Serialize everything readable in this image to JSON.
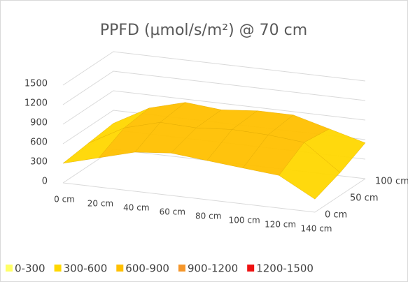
{
  "chart_data": {
    "type": "surface",
    "title": "PPFD (µmol/s/m²) @ 70 cm",
    "categories": [
      "0 cm",
      "20 cm",
      "40 cm",
      "60 cm",
      "80 cm",
      "100 cm",
      "120 cm",
      "140 cm"
    ],
    "depth_categories": [
      "0 cm",
      "50 cm",
      "100 cm"
    ],
    "rows": [
      [
        300,
        450,
        600,
        650,
        600,
        550,
        500,
        200
      ],
      [
        350,
        650,
        800,
        780,
        820,
        800,
        750,
        350
      ],
      [
        400,
        700,
        850,
        800,
        850,
        850,
        700,
        550
      ]
    ],
    "zlim": [
      0,
      1500
    ],
    "zticks": [
      0,
      300,
      600,
      900,
      1200,
      1500
    ],
    "bands": [
      {
        "label": "0-300",
        "color": "#ffff66"
      },
      {
        "label": "300-600",
        "color": "#ffd700"
      },
      {
        "label": "600-900",
        "color": "#ffc000"
      },
      {
        "label": "900-1200",
        "color": "#f5962a"
      },
      {
        "label": "1200-1500",
        "color": "#ee1111"
      }
    ],
    "grid": true
  }
}
